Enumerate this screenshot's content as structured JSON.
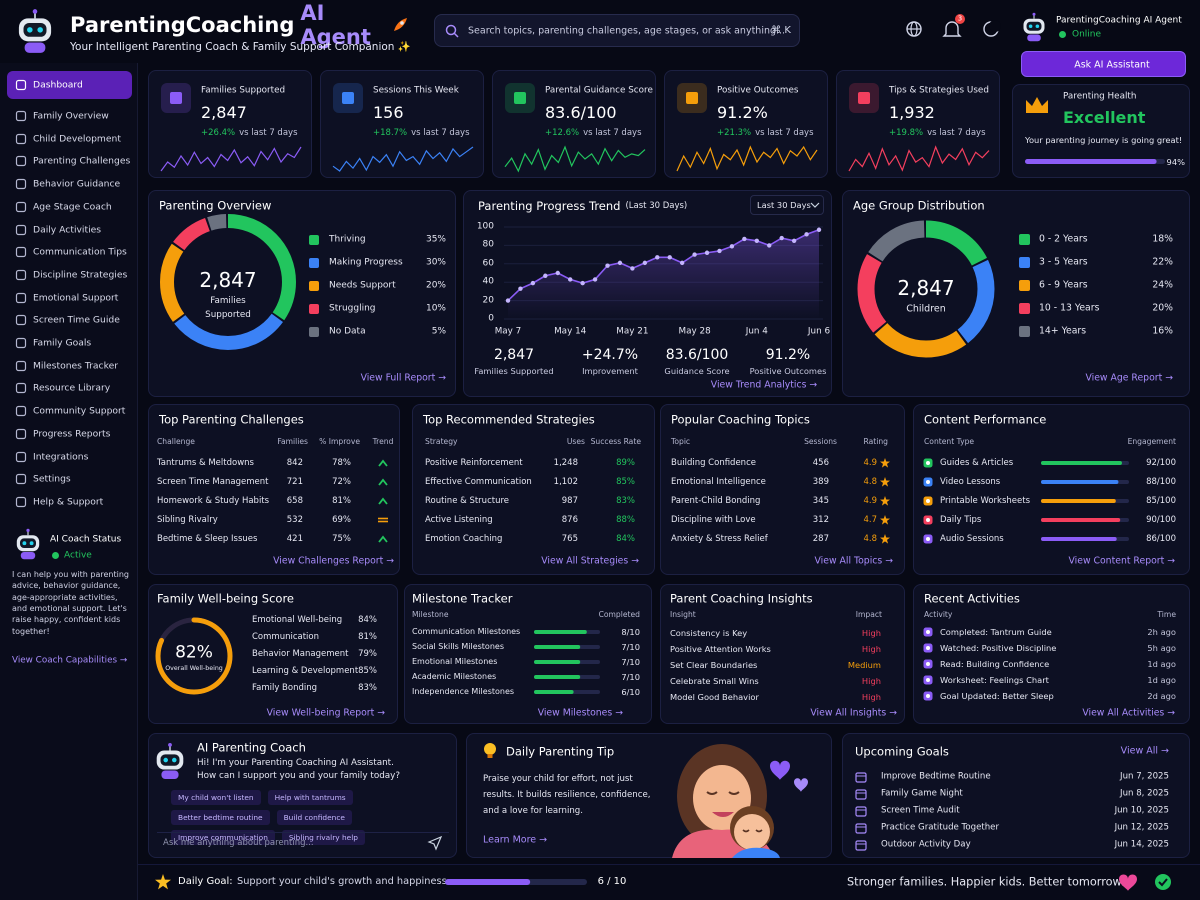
{
  "header": {
    "brand": "ParentingCoaching",
    "brand_accent": "AI Agent",
    "tagline": "Your Intelligent Parenting Coach & Family Support Companion ✨",
    "search_placeholder": "Search topics, parenting challenges, age stages, or ask anything...",
    "shortcut": "⌘ K",
    "notification_count": "3",
    "user_name": "ParentingCoaching AI Agent",
    "user_status": "Online",
    "ask_button": "Ask AI Assistant"
  },
  "sidebar": {
    "items": [
      "Dashboard",
      "Family Overview",
      "Child Development",
      "Parenting Challenges",
      "Behavior Guidance",
      "Age Stage Coach",
      "Daily Activities",
      "Communication Tips",
      "Discipline Strategies",
      "Emotional Support",
      "Screen Time Guide",
      "Family Goals",
      "Milestones Tracker",
      "Resource Library",
      "Community Support",
      "Progress Reports",
      "Integrations",
      "Settings",
      "Help & Support"
    ],
    "active": 0,
    "status_title": "AI Coach Status",
    "status": "Active",
    "status_text": "I can help you with parenting advice, behavior guidance, age-appropriate activities, and emotional support. Let's raise happy, confident kids together!",
    "status_link": "View Coach Capabilities →"
  },
  "stats": [
    {
      "label": "Families Supported",
      "value": "2,847",
      "change": "+26.4%",
      "period": "vs last 7 days",
      "color": "#8b5cf6",
      "spark": [
        30,
        42,
        35,
        50,
        38,
        55,
        40,
        48,
        36,
        52,
        44,
        58,
        41,
        49,
        37,
        56,
        45,
        60,
        42,
        53,
        48,
        62
      ]
    },
    {
      "label": "Sessions This Week",
      "value": "156",
      "change": "+18.7%",
      "period": "vs last 7 days",
      "color": "#3b82f6",
      "spark": [
        40,
        35,
        45,
        38,
        48,
        36,
        50,
        44,
        52,
        40,
        55,
        46,
        50,
        42,
        56,
        48,
        54,
        45,
        58,
        50,
        55,
        60
      ]
    },
    {
      "label": "Parental Guidance Score",
      "value": "83.6/100",
      "change": "+12.6%",
      "period": "vs last 7 days",
      "color": "#22c55e",
      "spark": [
        35,
        45,
        30,
        50,
        38,
        55,
        32,
        48,
        40,
        58,
        36,
        52,
        44,
        50,
        38,
        56,
        42,
        54,
        46,
        50,
        48,
        55
      ]
    },
    {
      "label": "Positive Outcomes",
      "value": "91.2%",
      "change": "+21.3%",
      "period": "vs last 7 days",
      "color": "#f59e0b",
      "spark": [
        30,
        50,
        35,
        55,
        40,
        60,
        33,
        52,
        45,
        58,
        38,
        62,
        42,
        55,
        48,
        60,
        40,
        57,
        50,
        62,
        45,
        58
      ]
    },
    {
      "label": "Tips & Strategies Used",
      "value": "1,932",
      "change": "+19.8%",
      "period": "vs last 7 days",
      "color": "#f43f5e",
      "spark": [
        35,
        48,
        40,
        55,
        38,
        60,
        42,
        52,
        36,
        58,
        45,
        50,
        40,
        62,
        44,
        54,
        48,
        60,
        42,
        56,
        50,
        58
      ]
    }
  ],
  "health": {
    "label": "Parenting Health",
    "value": "Excellent",
    "message": "Your parenting journey is going great!",
    "progress": 94,
    "progress_label": "94%"
  },
  "overview": {
    "title": "Parenting Overview",
    "center_value": "2,847",
    "center_label": "Families Supported",
    "segments": [
      {
        "name": "Thriving",
        "value": 35,
        "label": "35%",
        "color": "#22c55e"
      },
      {
        "name": "Making Progress",
        "value": 30,
        "label": "30%",
        "color": "#3b82f6"
      },
      {
        "name": "Needs Support",
        "value": 20,
        "label": "20%",
        "color": "#f59e0b"
      },
      {
        "name": "Struggling",
        "value": 10,
        "label": "10%",
        "color": "#f43f5e"
      },
      {
        "name": "No Data",
        "value": 5,
        "label": "5%",
        "color": "#6b7280"
      }
    ],
    "link": "View Full Report →"
  },
  "trend": {
    "title": "Parenting Progress Trend",
    "subtitle": "(Last 30 Days)",
    "dropdown": "Last 30 Days",
    "ylim": [
      0,
      100
    ],
    "yticks": [
      0,
      20,
      40,
      60,
      80,
      100
    ],
    "x_labels": [
      "May 7",
      "May 14",
      "May 21",
      "May 28",
      "Jun 4",
      "Jun 6"
    ],
    "values": [
      20,
      33,
      39,
      47,
      50,
      43,
      39,
      43,
      58,
      61,
      55,
      61,
      67,
      67,
      61,
      70,
      72,
      74,
      79,
      87,
      85,
      80,
      88,
      85,
      92,
      97
    ],
    "color": "#8b5cf6",
    "stats": [
      {
        "value": "2,847",
        "label": "Families Supported"
      },
      {
        "value": "+24.7%",
        "label": "Improvement"
      },
      {
        "value": "83.6/100",
        "label": "Guidance Score"
      },
      {
        "value": "91.2%",
        "label": "Positive Outcomes"
      }
    ],
    "link": "View Trend Analytics →"
  },
  "age": {
    "title": "Age Group Distribution",
    "center_value": "2,847",
    "center_label": "Children",
    "segments": [
      {
        "name": "0 - 2 Years",
        "value": 18,
        "label": "18%",
        "color": "#22c55e"
      },
      {
        "name": "3 - 5 Years",
        "value": 22,
        "label": "22%",
        "color": "#3b82f6"
      },
      {
        "name": "6 - 9 Years",
        "value": 24,
        "label": "24%",
        "color": "#f59e0b"
      },
      {
        "name": "10 - 13 Years",
        "value": 20,
        "label": "20%",
        "color": "#f43f5e"
      },
      {
        "name": "14+ Years",
        "value": 16,
        "label": "16%",
        "color": "#6b7280"
      }
    ],
    "link": "View Age Report →"
  },
  "challenges": {
    "title": "Top Parenting Challenges",
    "columns": [
      "Challenge",
      "Families",
      "% Improve",
      "Trend"
    ],
    "rows": [
      {
        "name": "Tantrums & Meltdowns",
        "families": "842",
        "improve": "78%",
        "trend": "up"
      },
      {
        "name": "Screen Time Management",
        "families": "721",
        "improve": "72%",
        "trend": "up"
      },
      {
        "name": "Homework & Study Habits",
        "families": "658",
        "improve": "81%",
        "trend": "up"
      },
      {
        "name": "Sibling Rivalry",
        "families": "532",
        "improve": "69%",
        "trend": "flat"
      },
      {
        "name": "Bedtime & Sleep Issues",
        "families": "421",
        "improve": "75%",
        "trend": "up"
      }
    ],
    "link": "View Challenges Report →"
  },
  "strategies": {
    "title": "Top Recommended Strategies",
    "columns": [
      "Strategy",
      "Uses",
      "Success Rate"
    ],
    "rows": [
      {
        "name": "Positive Reinforcement",
        "uses": "1,248",
        "rate": "89%"
      },
      {
        "name": "Effective Communication",
        "uses": "1,102",
        "rate": "85%"
      },
      {
        "name": "Routine & Structure",
        "uses": "987",
        "rate": "83%"
      },
      {
        "name": "Active Listening",
        "uses": "876",
        "rate": "88%"
      },
      {
        "name": "Emotion Coaching",
        "uses": "765",
        "rate": "84%"
      }
    ],
    "link": "View All Strategies →"
  },
  "topics": {
    "title": "Popular Coaching Topics",
    "columns": [
      "Topic",
      "Sessions",
      "Rating"
    ],
    "rows": [
      {
        "name": "Building Confidence",
        "sessions": "456",
        "rating": "4.9"
      },
      {
        "name": "Emotional Intelligence",
        "sessions": "389",
        "rating": "4.8"
      },
      {
        "name": "Parent-Child Bonding",
        "sessions": "345",
        "rating": "4.9"
      },
      {
        "name": "Discipline with Love",
        "sessions": "312",
        "rating": "4.7"
      },
      {
        "name": "Anxiety & Stress Relief",
        "sessions": "287",
        "rating": "4.8"
      }
    ],
    "link": "View All Topics →"
  },
  "content": {
    "title": "Content Performance",
    "columns": [
      "Content Type",
      "Engagement"
    ],
    "rows": [
      {
        "name": "Guides & Articles",
        "value": 92,
        "max": 100,
        "label": "92/100",
        "color": "#22c55e"
      },
      {
        "name": "Video Lessons",
        "value": 88,
        "max": 100,
        "label": "88/100",
        "color": "#3b82f6"
      },
      {
        "name": "Printable Worksheets",
        "value": 85,
        "max": 100,
        "label": "85/100",
        "color": "#f59e0b"
      },
      {
        "name": "Daily Tips",
        "value": 90,
        "max": 100,
        "label": "90/100",
        "color": "#f43f5e"
      },
      {
        "name": "Audio Sessions",
        "value": 86,
        "max": 100,
        "label": "86/100",
        "color": "#8b5cf6"
      }
    ],
    "link": "View Content Report →"
  },
  "wellbeing": {
    "title": "Family Well-being Score",
    "score": 82,
    "score_label": "82%",
    "score_caption": "Overall Well-being",
    "items": [
      {
        "name": "Emotional Well-being",
        "value": "84%"
      },
      {
        "name": "Communication",
        "value": "81%"
      },
      {
        "name": "Behavior Management",
        "value": "79%"
      },
      {
        "name": "Learning & Development",
        "value": "85%"
      },
      {
        "name": "Family Bonding",
        "value": "83%"
      }
    ],
    "link": "View Well-being Report →"
  },
  "milestones": {
    "title": "Milestone Tracker",
    "columns": [
      "Milestone",
      "Completed"
    ],
    "rows": [
      {
        "name": "Communication Milestones",
        "done": 8,
        "total": 10,
        "label": "8/10"
      },
      {
        "name": "Social Skills Milestones",
        "done": 7,
        "total": 10,
        "label": "7/10"
      },
      {
        "name": "Emotional Milestones",
        "done": 7,
        "total": 10,
        "label": "7/10"
      },
      {
        "name": "Academic Milestones",
        "done": 7,
        "total": 10,
        "label": "7/10"
      },
      {
        "name": "Independence Milestones",
        "done": 6,
        "total": 10,
        "label": "6/10"
      }
    ],
    "link": "View Milestones →"
  },
  "insights": {
    "title": "Parent Coaching Insights",
    "columns": [
      "Insight",
      "Impact"
    ],
    "rows": [
      {
        "name": "Consistency is Key",
        "impact": "High",
        "color": "#f43f5e"
      },
      {
        "name": "Positive Attention Works",
        "impact": "High",
        "color": "#f43f5e"
      },
      {
        "name": "Set Clear Boundaries",
        "impact": "Medium",
        "color": "#f59e0b"
      },
      {
        "name": "Celebrate Small Wins",
        "impact": "High",
        "color": "#f43f5e"
      },
      {
        "name": "Model Good Behavior",
        "impact": "High",
        "color": "#f43f5e"
      }
    ],
    "link": "View All Insights →"
  },
  "activities": {
    "title": "Recent Activities",
    "columns": [
      "Activity",
      "Time"
    ],
    "rows": [
      {
        "name": "Completed: Tantrum Guide",
        "time": "2h ago"
      },
      {
        "name": "Watched: Positive Discipline",
        "time": "5h ago"
      },
      {
        "name": "Read: Building Confidence",
        "time": "1d ago"
      },
      {
        "name": "Worksheet: Feelings Chart",
        "time": "1d ago"
      },
      {
        "name": "Goal Updated: Better Sleep",
        "time": "2d ago"
      }
    ],
    "link": "View All Activities →"
  },
  "coach": {
    "title": "AI Parenting Coach",
    "message": "Hi! I'm your Parenting Coaching AI Assistant.\nHow can I support you and your family today?",
    "chips": [
      "My child won't listen",
      "Help with tantrums",
      "Better bedtime routine",
      "Build confidence",
      "Improve communication",
      "Sibling rivalry help"
    ],
    "placeholder": "Ask me anything about parenting..."
  },
  "tip": {
    "title": "Daily Parenting Tip",
    "text": "Praise your child for effort, not just results. It builds resilience, confidence, and a love for learning.",
    "link": "Learn More →"
  },
  "goals": {
    "title": "Upcoming Goals",
    "link": "View All →",
    "items": [
      {
        "name": "Improve Bedtime Routine",
        "date": "Jun 7, 2025"
      },
      {
        "name": "Family Game Night",
        "date": "Jun 8, 2025"
      },
      {
        "name": "Screen Time Audit",
        "date": "Jun 10, 2025"
      },
      {
        "name": "Practice Gratitude Together",
        "date": "Jun 12, 2025"
      },
      {
        "name": "Outdoor Activity Day",
        "date": "Jun 14, 2025"
      }
    ]
  },
  "footer": {
    "goal_label": "Daily Goal:",
    "goal_text": "Support your child's growth and happiness",
    "done": 6,
    "total": 10,
    "progress_label": "6 / 10",
    "slogan": "Stronger families. Happier kids. Better tomorrow."
  }
}
